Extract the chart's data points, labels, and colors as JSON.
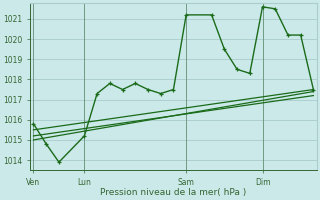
{
  "title": "",
  "xlabel": "Pression niveau de la mer( hPa )",
  "ylim": [
    1013.5,
    1021.8
  ],
  "yticks": [
    1014,
    1015,
    1016,
    1017,
    1018,
    1019,
    1020,
    1021
  ],
  "bg_color": "#cce9e9",
  "grid_color": "#aacccc",
  "line_color": "#1a6b1a",
  "text_color": "#336633",
  "day_labels": [
    "Ven",
    "Lun",
    "Sam",
    "Dim"
  ],
  "day_positions": [
    0,
    4,
    12,
    18
  ],
  "xlim": [
    -0.3,
    22.3
  ],
  "series1": {
    "x": [
      0,
      1,
      2,
      4,
      5,
      6,
      7,
      8,
      9,
      10,
      11,
      12,
      14,
      15,
      16,
      17,
      18,
      19,
      20,
      21,
      22
    ],
    "y": [
      1015.8,
      1014.8,
      1013.9,
      1015.2,
      1017.3,
      1017.8,
      1017.5,
      1017.8,
      1017.5,
      1017.3,
      1017.5,
      1021.2,
      1021.2,
      1019.5,
      1018.5,
      1018.3,
      1021.6,
      1021.5,
      1020.2,
      1020.2,
      1017.5
    ]
  },
  "series2": {
    "x": [
      0,
      22
    ],
    "y": [
      1015.2,
      1017.2
    ]
  },
  "series3": {
    "x": [
      0,
      22
    ],
    "y": [
      1015.5,
      1017.5
    ]
  },
  "series4": {
    "x": [
      0,
      22
    ],
    "y": [
      1015.0,
      1017.4
    ]
  }
}
